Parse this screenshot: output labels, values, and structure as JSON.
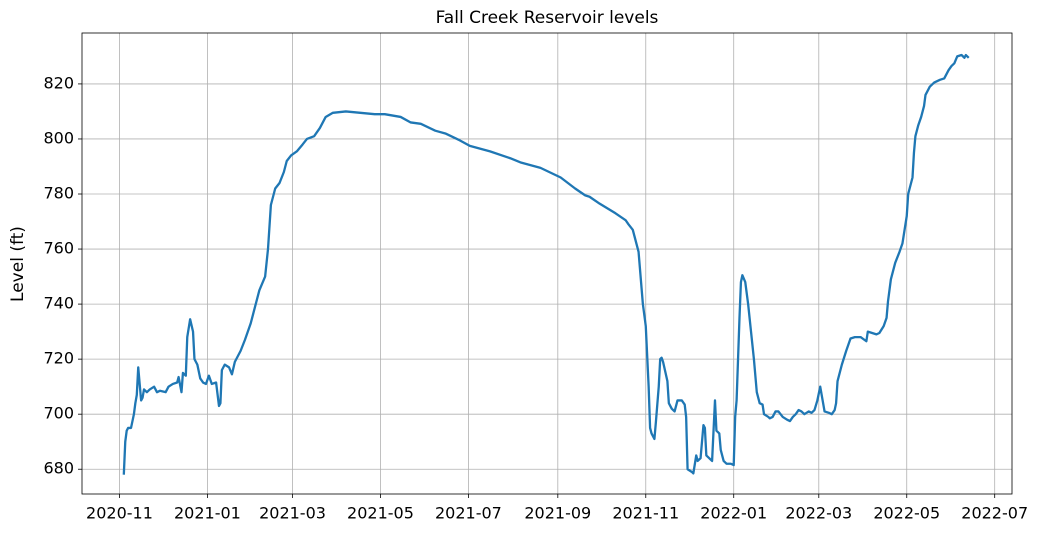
{
  "chart_data": {
    "type": "line",
    "title": "Fall Creek Reservoir levels",
    "y_label": "Level (ft)",
    "color": "#1f77b4",
    "grid": true,
    "xlim": [
      18541,
      19186
    ],
    "ylim": [
      671,
      838.5
    ],
    "xticks": [
      {
        "value": 18567,
        "label": "2020-11"
      },
      {
        "value": 18628,
        "label": "2021-01"
      },
      {
        "value": 18687,
        "label": "2021-03"
      },
      {
        "value": 18748,
        "label": "2021-05"
      },
      {
        "value": 18809,
        "label": "2021-07"
      },
      {
        "value": 18871,
        "label": "2021-09"
      },
      {
        "value": 18932,
        "label": "2021-11"
      },
      {
        "value": 18993,
        "label": "2022-01"
      },
      {
        "value": 19052,
        "label": "2022-03"
      },
      {
        "value": 19113,
        "label": "2022-05"
      },
      {
        "value": 19174,
        "label": "2022-07"
      }
    ],
    "yticks": [
      680,
      700,
      720,
      740,
      760,
      780,
      800,
      820
    ],
    "x": [
      18570,
      18571,
      18572,
      18573,
      18575,
      18577,
      18578,
      18579,
      18580,
      18582,
      18583,
      18584,
      18586,
      18588,
      18591,
      18593,
      18595,
      18599,
      18601,
      18604,
      18607,
      18608,
      18610,
      18611,
      18613,
      18614,
      18616,
      18618,
      18619,
      18621,
      18623,
      18625,
      18627,
      18629,
      18631,
      18634,
      18636,
      18637,
      18638,
      18640,
      18643,
      18645,
      18647,
      18651,
      18654,
      18658,
      18661,
      18664,
      18668,
      18670,
      18672,
      18675,
      18678,
      18681,
      18683,
      18686,
      18690,
      18694,
      18697,
      18702,
      18706,
      18710,
      18715,
      18724,
      18734,
      18744,
      18751,
      18762,
      18769,
      18776,
      18786,
      18793,
      18803,
      18810,
      18824,
      18838,
      18845,
      18859,
      18873,
      18883,
      18890,
      18893,
      18900,
      18911,
      18918,
      18920,
      18923,
      18927,
      18930,
      18932,
      18934,
      18935,
      18936,
      18938,
      18939,
      18941,
      18942,
      18943,
      18944,
      18947,
      18948,
      18950,
      18952,
      18954,
      18957,
      18959,
      18960,
      18961,
      18964,
      18965,
      18967,
      18968,
      18970,
      18972,
      18973,
      18974,
      18976,
      18978,
      18980,
      18981,
      18983,
      18984,
      18986,
      18988,
      18991,
      18993,
      18994,
      18995,
      18997,
      18998,
      18999,
      19001,
      19003,
      19005,
      19007,
      19009,
      19011,
      19013,
      19014,
      19017,
      19018,
      19020,
      19022,
      19024,
      19027,
      19030,
      19032,
      19034,
      19036,
      19038,
      19040,
      19042,
      19045,
      19047,
      19049,
      19051,
      19053,
      19055,
      19056,
      19059,
      19061,
      19063,
      19064,
      19065,
      19068,
      19071,
      19074,
      19077,
      19081,
      19085,
      19086,
      19089,
      19092,
      19094,
      19097,
      19099,
      19100,
      19102,
      19105,
      19108,
      19110,
      19113,
      19114,
      19117,
      19118,
      19119,
      19121,
      19123,
      19125,
      19126,
      19129,
      19132,
      19136,
      19139,
      19142,
      19144,
      19146,
      19148,
      19151,
      19153,
      19154,
      19156
    ],
    "values": [
      678,
      690,
      694,
      695,
      695,
      700,
      704,
      707,
      717,
      705,
      706,
      709,
      708,
      709,
      710,
      708,
      708.5,
      708,
      710,
      711,
      711.5,
      713.5,
      708,
      715,
      714,
      728,
      734.5,
      730,
      720,
      718,
      713,
      711.5,
      711,
      714,
      711,
      711.5,
      703,
      704,
      716,
      718,
      717,
      714.5,
      719,
      723,
      727,
      733,
      739,
      745,
      750,
      760,
      776,
      782,
      784,
      788,
      792,
      794,
      795.5,
      798,
      800,
      801,
      804,
      808,
      809.5,
      810,
      809.5,
      809,
      809,
      808,
      806,
      805.5,
      803,
      802,
      799.5,
      797.5,
      795.5,
      793,
      791.5,
      789.5,
      786,
      782,
      779.5,
      779,
      776.5,
      773,
      770.5,
      769,
      767,
      759,
      740,
      732,
      710,
      695,
      693,
      691,
      697,
      710,
      720,
      720.5,
      719,
      712,
      704,
      702,
      701,
      705,
      705,
      703.5,
      699,
      680,
      679,
      678.5,
      685,
      683,
      684,
      696,
      695,
      685,
      684,
      683,
      705,
      694,
      693,
      687,
      683,
      682,
      682,
      681.5,
      699,
      705,
      735,
      748,
      750.5,
      748,
      740,
      730,
      720,
      708,
      704,
      703.5,
      700,
      699,
      698.5,
      699,
      701,
      701,
      699,
      698,
      697.5,
      699,
      700,
      701.5,
      701,
      700,
      701,
      700.5,
      701.5,
      705,
      710,
      704,
      701,
      700.5,
      700,
      701.5,
      704,
      712,
      718,
      723,
      727.5,
      728,
      728,
      726.5,
      730,
      729.5,
      729,
      729.5,
      732,
      735,
      741,
      749,
      755,
      759,
      762,
      772,
      780,
      786,
      795,
      801,
      805,
      808,
      812,
      816,
      819,
      820.5,
      821.5,
      822,
      825,
      826.5,
      827.5,
      830,
      830.5,
      829.5,
      830.5,
      829.5
    ]
  }
}
